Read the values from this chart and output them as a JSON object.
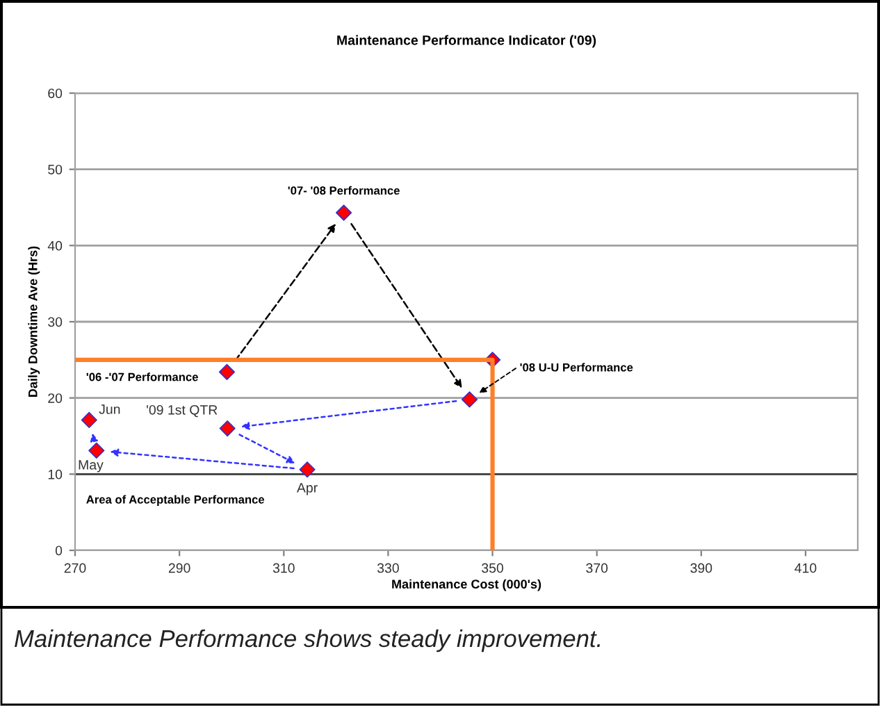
{
  "chart_data": {
    "type": "scatter",
    "title": "Maintenance Performance Indicator ('09)",
    "xlabel": "Maintenance Cost (000's)",
    "ylabel": "Daily Downtime Ave (Hrs)",
    "xlim": [
      270,
      420
    ],
    "xticks": [
      270,
      290,
      310,
      330,
      350,
      370,
      390,
      410
    ],
    "ylim": [
      0,
      60
    ],
    "yticks": [
      0,
      10,
      20,
      30,
      40,
      50,
      60
    ],
    "grid": "y",
    "series": [
      {
        "type": "line",
        "color": "#ff7f27",
        "x": [
          270,
          350,
          350
        ],
        "values": [
          25,
          25,
          0
        ]
      },
      {
        "color": "#ff0000",
        "marker": "diamond",
        "x": [
          299.1,
          321.5,
          345.6,
          350,
          299.2,
          314.5,
          274.1,
          272.7
        ],
        "values": [
          23.4,
          44.3,
          19.8,
          25,
          16.0,
          10.6,
          13.1,
          17.1
        ]
      }
    ],
    "ref_lines": [
      {
        "axis": "y",
        "value": 10,
        "color": "#404040"
      }
    ],
    "annotations": [
      {
        "text": "'07- '08 Performance",
        "x": 321.5,
        "y": 44.3
      },
      {
        "text": "'09 1st QTR",
        "x": 299.2,
        "y": 16.0
      },
      {
        "text": "Apr",
        "x": 314.5,
        "y": 10.6
      },
      {
        "text": "May",
        "x": 274.1,
        "y": 13.1
      },
      {
        "text": "Jun",
        "x": 272.7,
        "y": 17.1
      },
      "'06 -'07 Performance",
      "'08 U-U Performance",
      "Area of Acceptable Performance",
      "Maintenance Performance shows steady improvement."
    ]
  }
}
